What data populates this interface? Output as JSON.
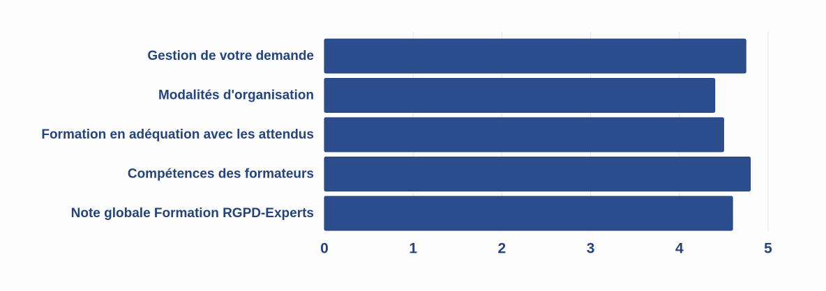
{
  "chart_data": {
    "type": "bar",
    "orientation": "horizontal",
    "title": "",
    "xlabel": "",
    "ylabel": "",
    "categories": [
      "Gestion de votre demande",
      "Modalités d'organisation",
      "Formation en adéquation avec les attendus",
      "Compétences des formateurs",
      "Note globale Formation RGPD-Experts"
    ],
    "values": [
      4.75,
      4.4,
      4.5,
      4.8,
      4.6
    ],
    "xlim": [
      0,
      5
    ],
    "x_ticks": [
      "0",
      "1",
      "2",
      "3",
      "4",
      "5"
    ],
    "grid": "vertical light gridlines",
    "legend": "none"
  },
  "colors": {
    "bar": "#2d4e8e",
    "bar_edge": "#23407a",
    "label": "#23447f",
    "grid": "#e6e6e6",
    "background": "#fdfdfd"
  }
}
